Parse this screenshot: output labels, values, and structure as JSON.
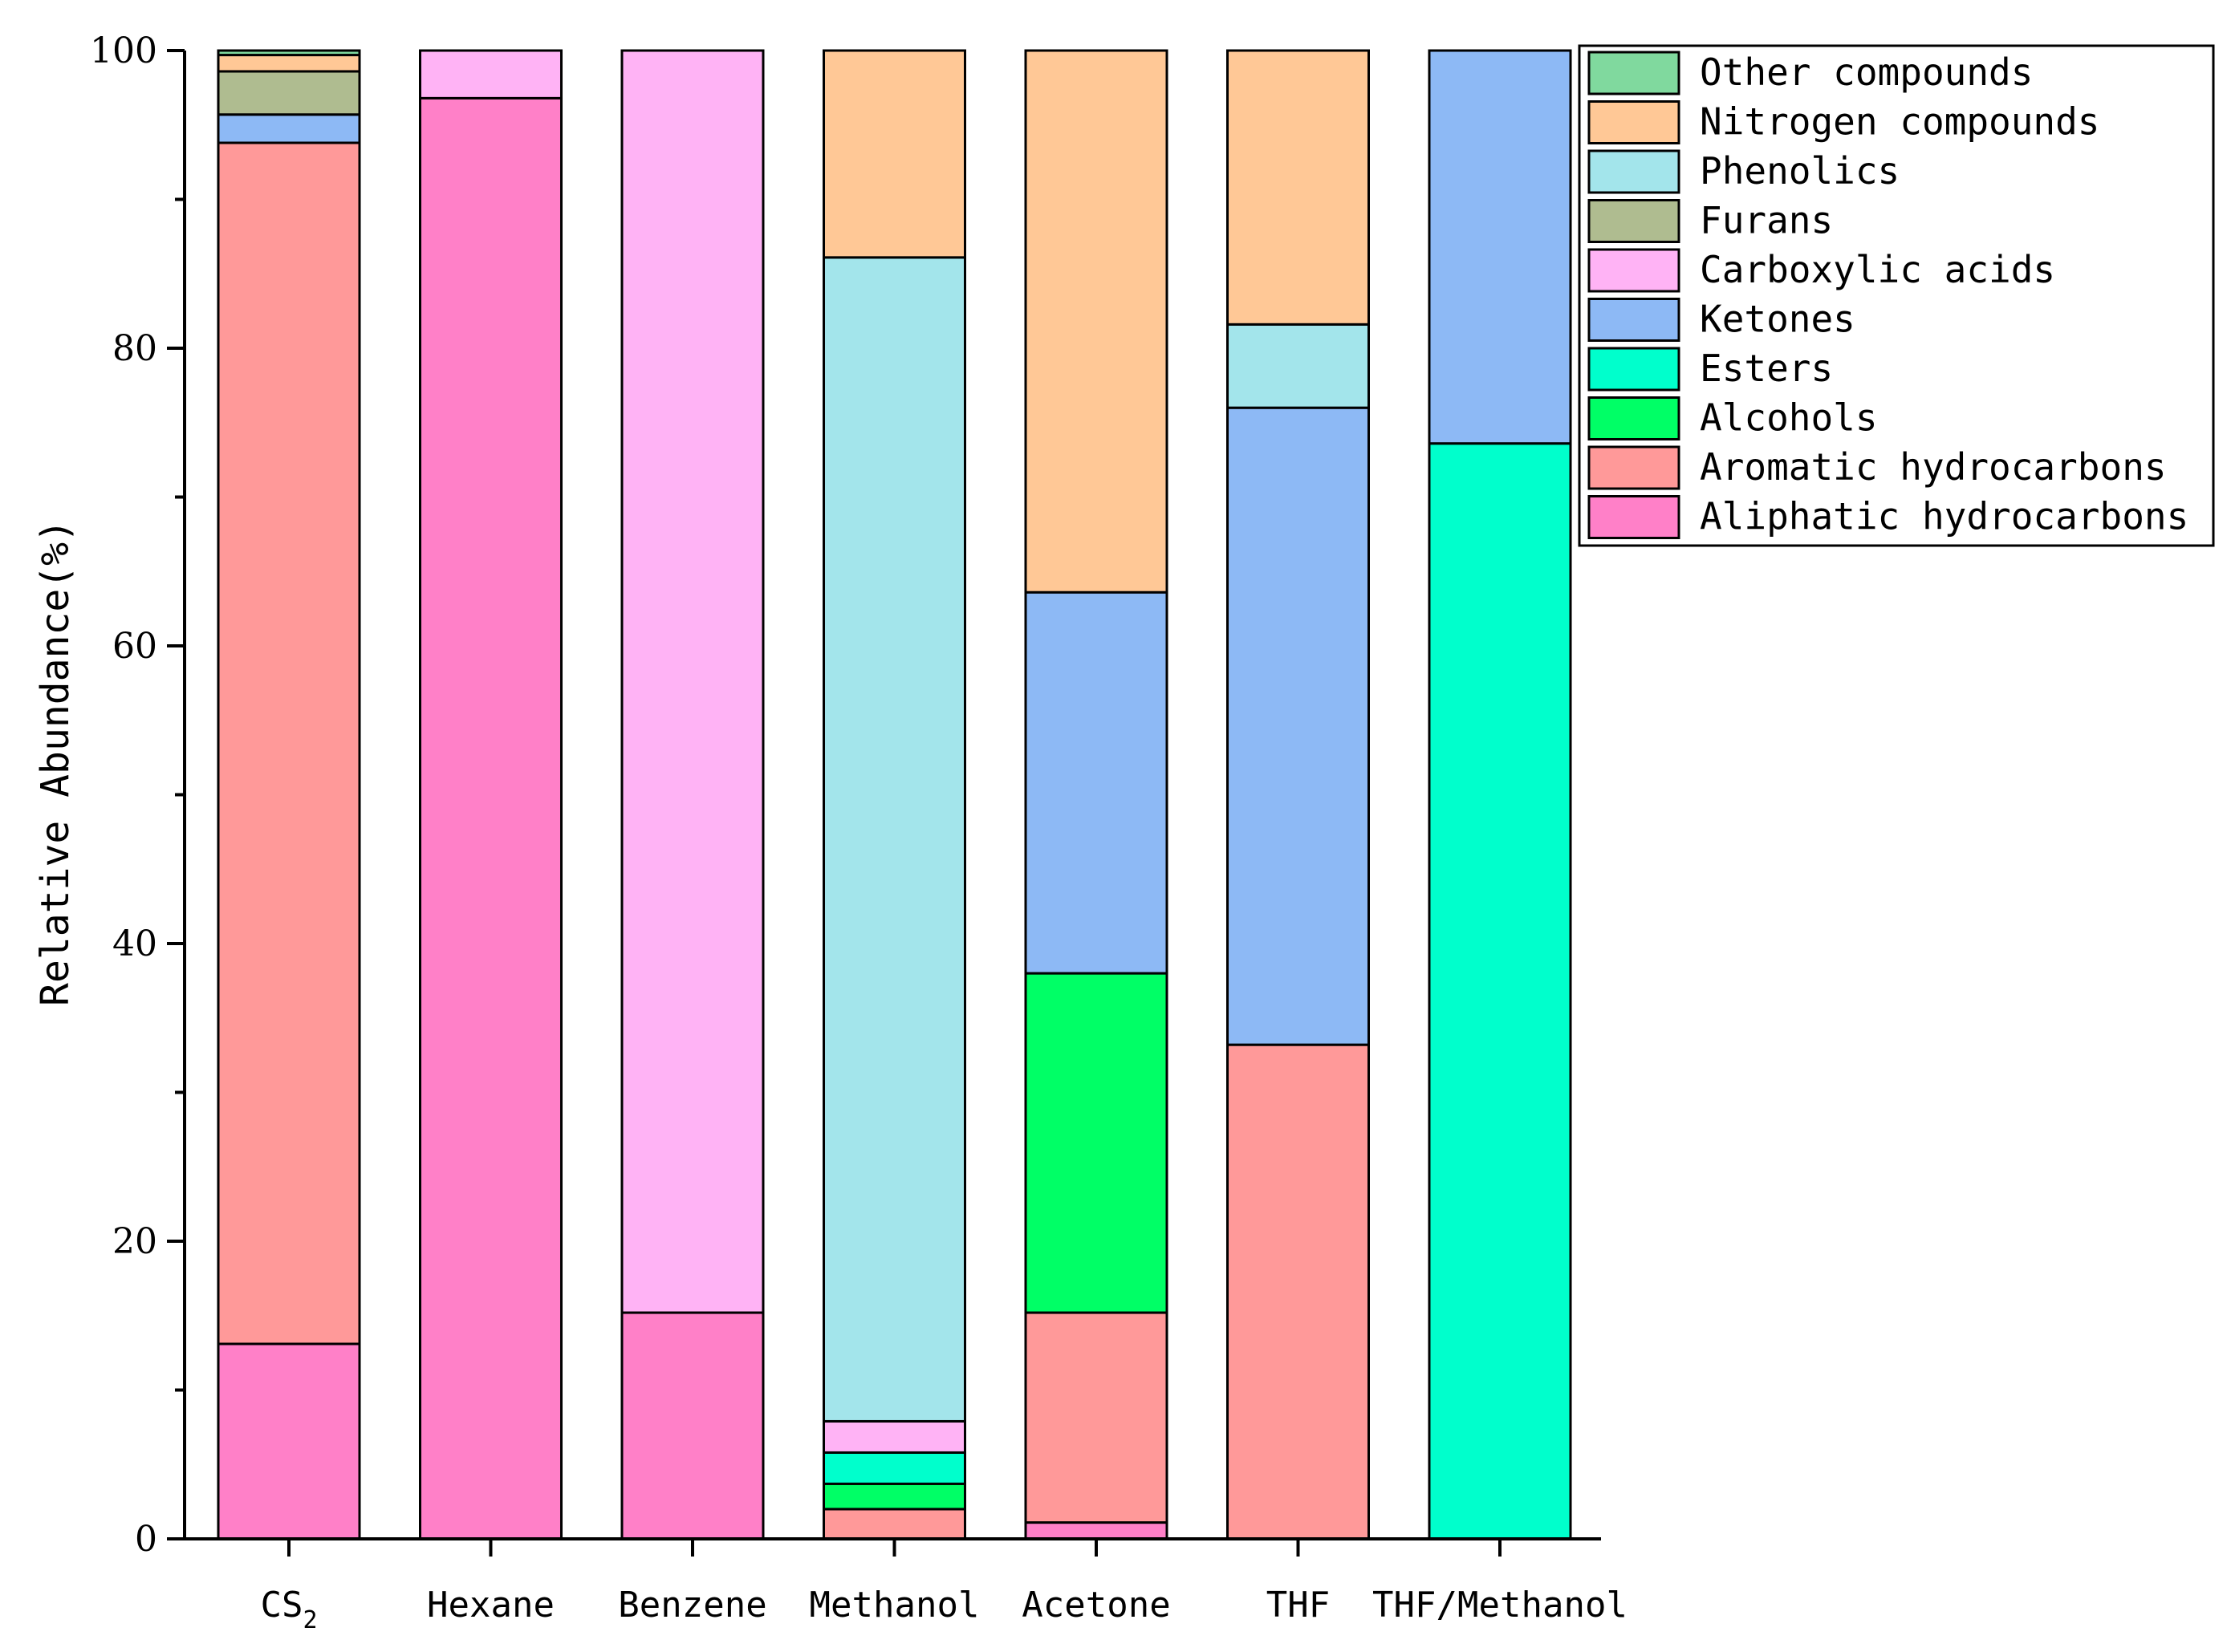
{
  "chart_data": {
    "type": "bar",
    "stacked": true,
    "title": "",
    "xlabel": "",
    "ylabel": "Relative Abundance(%)",
    "ylim": [
      0,
      100
    ],
    "yticks": [
      "0",
      "20",
      "40",
      "60",
      "80",
      "100"
    ],
    "categories": [
      {
        "main": "CS",
        "sub": "2"
      },
      {
        "main": "Hexane",
        "sub": ""
      },
      {
        "main": "Benzene",
        "sub": ""
      },
      {
        "main": "Methanol",
        "sub": ""
      },
      {
        "main": "Acetone",
        "sub": ""
      },
      {
        "main": "THF",
        "sub": ""
      },
      {
        "main": "THF/Methanol",
        "sub": ""
      }
    ],
    "legend_position": "top-right",
    "series": [
      {
        "name": "Aliphatic hydrocarbons",
        "color": "#FF80C8",
        "values": [
          13.1,
          96.8,
          15.2,
          0,
          1.1,
          0,
          0
        ]
      },
      {
        "name": "Aromatic hydrocarbons",
        "color": "#FF9999",
        "values": [
          80.7,
          0,
          0,
          2.0,
          14.1,
          33.2,
          0
        ]
      },
      {
        "name": "Alcohols",
        "color": "#00FF66",
        "values": [
          0,
          0,
          0,
          1.7,
          22.8,
          0,
          0
        ]
      },
      {
        "name": "Esters",
        "color": "#00FFCC",
        "values": [
          0,
          0,
          0,
          2.1,
          0,
          0,
          73.6
        ]
      },
      {
        "name": "Ketones",
        "color": "#8DB9F5",
        "values": [
          1.9,
          0,
          0,
          0,
          25.6,
          42.8,
          26.4
        ]
      },
      {
        "name": "Carboxylic acids",
        "color": "#FFB3F5",
        "values": [
          0,
          3.2,
          84.8,
          2.1,
          0,
          0,
          0
        ]
      },
      {
        "name": "Furans",
        "color": "#AFBC90",
        "values": [
          2.9,
          0,
          0,
          0,
          0,
          0,
          0
        ]
      },
      {
        "name": "Phenolics",
        "color": "#A3E5EB",
        "values": [
          0,
          0,
          0,
          78.2,
          0,
          5.6,
          0
        ]
      },
      {
        "name": "Nitrogen compounds",
        "color": "#FFC896",
        "values": [
          1.1,
          0,
          0,
          13.9,
          36.4,
          18.4,
          0
        ]
      },
      {
        "name": "Other compounds",
        "color": "#80D99E",
        "values": [
          0.3,
          0,
          0,
          0,
          0,
          0,
          0
        ]
      }
    ],
    "legend_order": [
      "Other compounds",
      "Nitrogen compounds",
      "Phenolics",
      "Furans",
      "Carboxylic acids",
      "Ketones",
      "Esters",
      "Alcohols",
      "Aromatic hydrocarbons",
      "Aliphatic hydrocarbons"
    ]
  }
}
